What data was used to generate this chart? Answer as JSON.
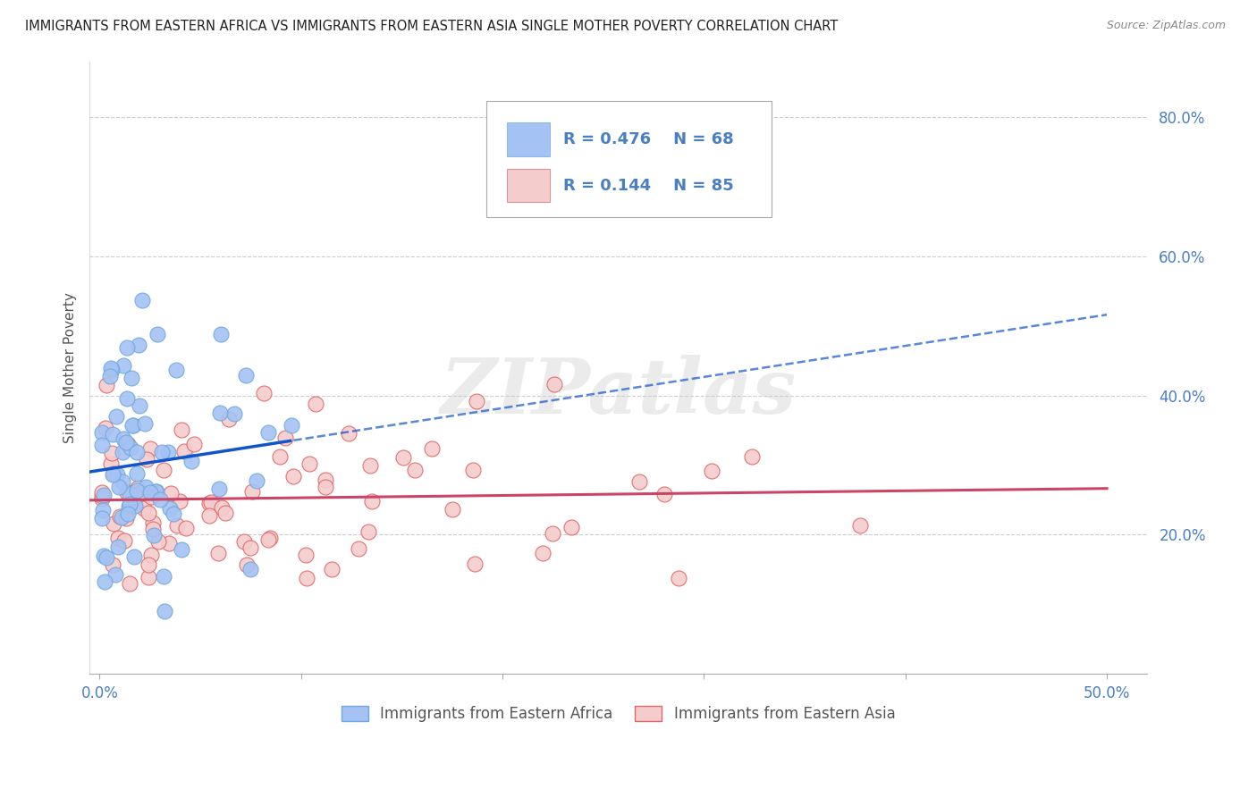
{
  "title": "IMMIGRANTS FROM EASTERN AFRICA VS IMMIGRANTS FROM EASTERN ASIA SINGLE MOTHER POVERTY CORRELATION CHART",
  "source": "Source: ZipAtlas.com",
  "ylabel_label": "Single Mother Poverty",
  "x_tick_labels": [
    "0.0%",
    "",
    "",
    "",
    "",
    "50.0%"
  ],
  "y_tick_labels": [
    "",
    "20.0%",
    "40.0%",
    "60.0%",
    "80.0%"
  ],
  "xlim": [
    -0.005,
    0.52
  ],
  "ylim": [
    0.05,
    0.88
  ],
  "africa_R": 0.476,
  "africa_N": 68,
  "asia_R": 0.144,
  "asia_N": 85,
  "africa_color": "#a4c2f4",
  "africa_color_edge": "#6fa8dc",
  "asia_color": "#f4cccc",
  "asia_color_edge": "#e06666",
  "regression_africa_color": "#1155cc",
  "regression_asia_color": "#cc4466",
  "watermark_text": "ZIPatlas",
  "background_color": "#ffffff",
  "grid_color": "#cccccc",
  "title_color": "#222222",
  "axis_tick_color": "#4a7fc1",
  "legend_border_color": "#aaaaaa",
  "bottom_legend_text_color": "#555555",
  "africa_seed": 7,
  "asia_seed": 13,
  "reg_af_intercept": 0.265,
  "reg_af_slope": 1.08,
  "reg_as_intercept": 0.248,
  "reg_as_slope": 0.165
}
